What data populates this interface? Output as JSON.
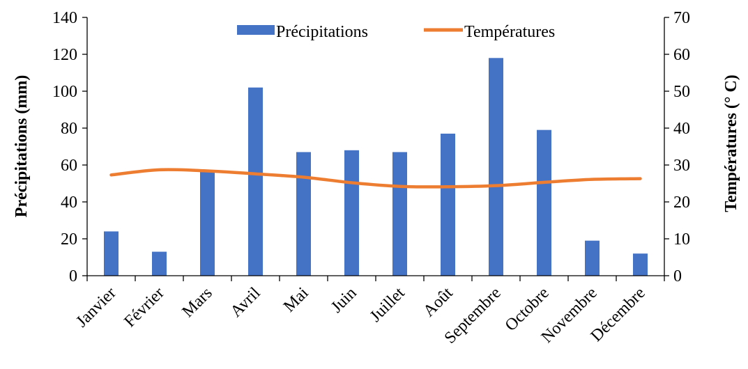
{
  "chart_data": {
    "type": "bar",
    "categories": [
      "Janvier",
      "Février",
      "Mars",
      "Avril",
      "Mai",
      "Juin",
      "Juillet",
      "Août",
      "Septembre",
      "Octobre",
      "Novembre",
      "Décembre"
    ],
    "series": [
      {
        "name": "Précipitations",
        "type": "bar",
        "axis": "left",
        "color": "#4472C4",
        "values": [
          24,
          13,
          57,
          102,
          67,
          68,
          67,
          77,
          118,
          79,
          19,
          12
        ]
      },
      {
        "name": "Températures",
        "type": "line",
        "axis": "right",
        "color": "#ED7D31",
        "values": [
          27.3,
          28.7,
          28.4,
          27.6,
          26.7,
          25.2,
          24.2,
          24.1,
          24.4,
          25.3,
          26.1,
          26.3
        ]
      }
    ],
    "ylabel": "Précipitations (mm)",
    "y2label": "Températures (° C)",
    "ylim": [
      0,
      140
    ],
    "y2lim": [
      0,
      70
    ],
    "yticks": [
      "0",
      "20",
      "40",
      "60",
      "80",
      "100",
      "120",
      "140"
    ],
    "y2ticks": [
      "0",
      "10",
      "20",
      "30",
      "40",
      "50",
      "60",
      "70"
    ],
    "legend": "top-center",
    "grid": false
  }
}
